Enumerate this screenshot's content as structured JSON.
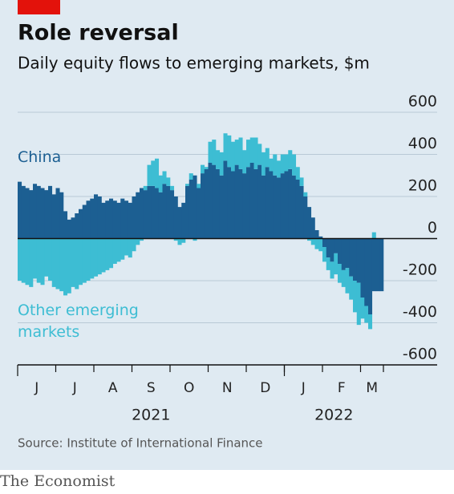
{
  "chart_data": {
    "type": "bar",
    "stacked": true,
    "title": "Role reversal",
    "subtitle": "Daily equity flows to emerging markets, $m",
    "months": [
      "J",
      "J",
      "A",
      "S",
      "O",
      "N",
      "D",
      "J",
      "F",
      "M"
    ],
    "years": [
      "2021",
      "2022"
    ],
    "ylim": [
      -600,
      600
    ],
    "yticks": [
      600,
      400,
      200,
      0,
      -200,
      -400,
      -600
    ],
    "grid": true,
    "series": [
      {
        "name": "China",
        "color": "#1c5f92",
        "values": [
          270,
          250,
          240,
          230,
          260,
          250,
          240,
          230,
          250,
          210,
          240,
          220,
          130,
          90,
          100,
          120,
          140,
          160,
          180,
          190,
          210,
          200,
          170,
          180,
          190,
          180,
          170,
          190,
          180,
          170,
          200,
          220,
          240,
          230,
          250,
          250,
          240,
          220,
          260,
          250,
          230,
          200,
          150,
          170,
          250,
          280,
          300,
          240,
          310,
          330,
          360,
          350,
          330,
          300,
          370,
          340,
          320,
          350,
          330,
          310,
          340,
          360,
          330,
          350,
          300,
          340,
          320,
          300,
          290,
          310,
          320,
          330,
          300,
          280,
          250,
          200,
          150,
          100,
          40,
          10,
          -40,
          -90,
          -110,
          -70,
          -120,
          -150,
          -140,
          -180,
          -200,
          -210,
          -280,
          -320,
          -360,
          -250,
          -250,
          -250
        ]
      },
      {
        "name": "Other emerging markets",
        "color": "#3dbdd3",
        "values": [
          -200,
          -210,
          -220,
          -230,
          -190,
          -210,
          -220,
          -180,
          -200,
          -230,
          -240,
          -250,
          -270,
          -260,
          -230,
          -240,
          -220,
          -210,
          -200,
          -190,
          -180,
          -170,
          -160,
          -150,
          -140,
          -120,
          -110,
          -100,
          -80,
          -90,
          -60,
          -30,
          -10,
          20,
          100,
          120,
          140,
          80,
          60,
          40,
          20,
          -10,
          -30,
          -20,
          10,
          30,
          -10,
          20,
          40,
          10,
          100,
          120,
          90,
          110,
          130,
          150,
          140,
          120,
          150,
          110,
          130,
          120,
          150,
          100,
          110,
          90,
          60,
          100,
          80,
          90,
          80,
          90,
          100,
          60,
          40,
          20,
          -10,
          -30,
          -50,
          -60,
          -70,
          -60,
          -80,
          -100,
          -90,
          -80,
          -120,
          -110,
          -150,
          -200,
          -100,
          -80,
          -70,
          30,
          0,
          0
        ]
      }
    ],
    "source": "Source: Institute of International Finance",
    "brand": "The Economist"
  }
}
